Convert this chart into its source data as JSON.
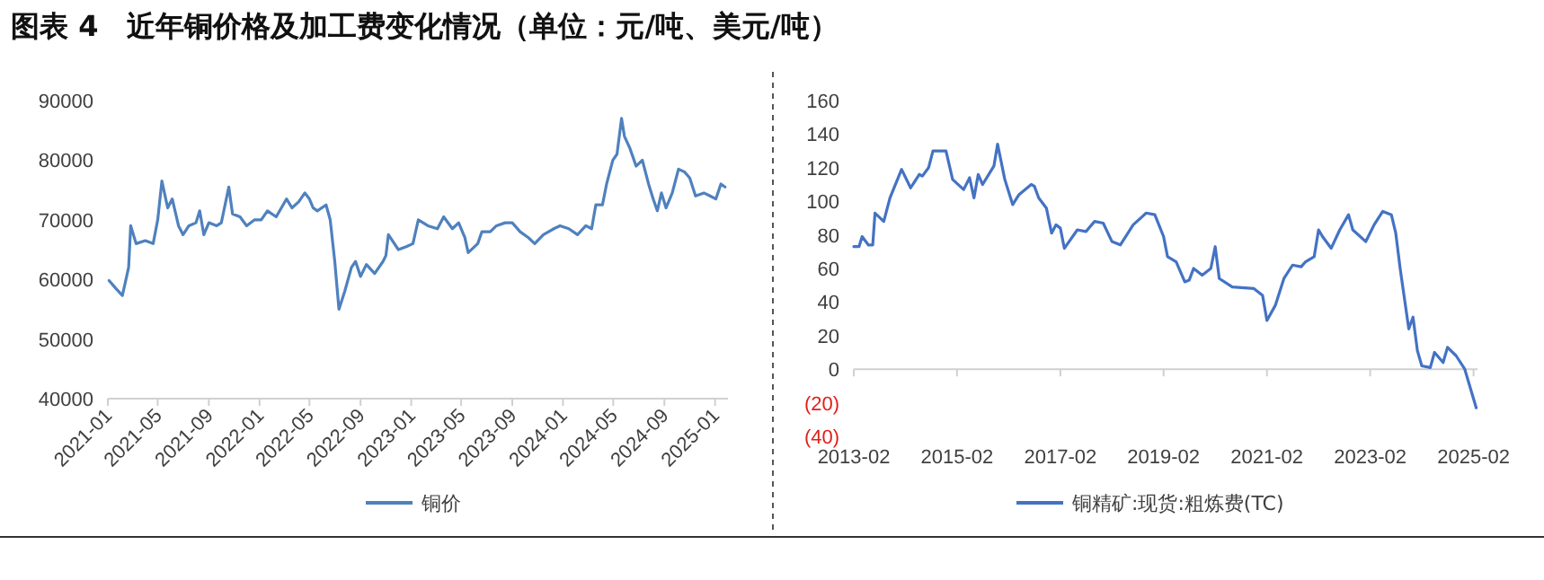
{
  "chart_data": [
    {
      "type": "line",
      "title": "图表 4　近年铜价格及加工费变化情况（单位：元/吨、美元/吨）",
      "legend": "bottom",
      "x": [
        "2021-01-04",
        "2021-01-20",
        "2021-02-05",
        "2021-02-20",
        "2021-02-25",
        "2021-03-10",
        "2021-04-01",
        "2021-04-20",
        "2021-05-01",
        "2021-05-11",
        "2021-05-25",
        "2021-06-05",
        "2021-06-20",
        "2021-07-01",
        "2021-07-15",
        "2021-08-01",
        "2021-08-10",
        "2021-08-20",
        "2021-09-01",
        "2021-09-20",
        "2021-10-01",
        "2021-10-19",
        "2021-10-28",
        "2021-11-15",
        "2021-12-01",
        "2021-12-20",
        "2022-01-05",
        "2022-01-20",
        "2022-02-10",
        "2022-03-07",
        "2022-03-20",
        "2022-04-05",
        "2022-04-20",
        "2022-05-01",
        "2022-05-10",
        "2022-05-20",
        "2022-06-10",
        "2022-06-20",
        "2022-07-01",
        "2022-07-11",
        "2022-07-25",
        "2022-08-10",
        "2022-08-20",
        "2022-09-01",
        "2022-09-15",
        "2022-10-05",
        "2022-10-25",
        "2022-11-01",
        "2022-11-07",
        "2022-12-01",
        "2022-12-20",
        "2023-01-05",
        "2023-01-18",
        "2023-02-10",
        "2023-03-05",
        "2023-03-20",
        "2023-04-10",
        "2023-04-25",
        "2023-05-10",
        "2023-05-18",
        "2023-06-10",
        "2023-06-20",
        "2023-07-10",
        "2023-07-25",
        "2023-08-15",
        "2023-09-01",
        "2023-09-20",
        "2023-10-10",
        "2023-10-25",
        "2023-11-15",
        "2023-12-10",
        "2023-12-25",
        "2024-01-15",
        "2024-02-05",
        "2024-02-25",
        "2024-03-10",
        "2024-03-20",
        "2024-04-05",
        "2024-04-15",
        "2024-04-30",
        "2024-05-10",
        "2024-05-21",
        "2024-05-28",
        "2024-06-10",
        "2024-06-25",
        "2024-07-10",
        "2024-07-25",
        "2024-08-05",
        "2024-08-15",
        "2024-08-25",
        "2024-09-05",
        "2024-09-20",
        "2024-10-05",
        "2024-10-20",
        "2024-11-01",
        "2024-11-15",
        "2024-12-05",
        "2024-12-20",
        "2025-01-03",
        "2025-01-15",
        "2025-01-25"
      ],
      "series": [
        {
          "name": "铜价",
          "color": "#4f81bd",
          "values": [
            59800,
            58500,
            57300,
            62000,
            69000,
            66000,
            66500,
            66000,
            70000,
            76500,
            72000,
            73500,
            69000,
            67500,
            69000,
            69500,
            71500,
            67500,
            69500,
            69000,
            69500,
            75500,
            71000,
            70500,
            69000,
            70000,
            70000,
            71500,
            70500,
            73500,
            72000,
            73000,
            74500,
            73500,
            72000,
            71500,
            72500,
            70000,
            63000,
            55000,
            58000,
            62000,
            63000,
            60500,
            62500,
            61000,
            63000,
            64000,
            67500,
            65000,
            65500,
            66000,
            70000,
            69000,
            68500,
            70500,
            68500,
            69500,
            67000,
            64500,
            66000,
            68000,
            68000,
            69000,
            69500,
            69500,
            68000,
            67000,
            66000,
            67500,
            68500,
            69000,
            68500,
            67500,
            69000,
            68500,
            72500,
            72500,
            76000,
            80000,
            81000,
            87000,
            84000,
            82000,
            79000,
            80000,
            76000,
            73500,
            71500,
            74500,
            72000,
            74500,
            78500,
            78000,
            77000,
            74000,
            74500,
            74000,
            73500,
            76000,
            75500
          ]
        }
      ],
      "xlim": [
        "2021-01-01",
        "2025-02-01"
      ],
      "ylim": [
        40000,
        90000
      ],
      "xticks": [
        "2021-01",
        "2021-05",
        "2021-09",
        "2022-01",
        "2022-05",
        "2022-09",
        "2023-01",
        "2023-05",
        "2023-09",
        "2024-01",
        "2024-05",
        "2024-09",
        "2025-01"
      ],
      "yticks": [
        40000,
        50000,
        60000,
        70000,
        80000,
        90000
      ]
    },
    {
      "type": "line",
      "legend": "bottom",
      "x": [
        "2013-02-01",
        "2013-03-10",
        "2013-04-01",
        "2013-05-15",
        "2013-06-15",
        "2013-07-01",
        "2013-09-01",
        "2013-10-15",
        "2014-01-05",
        "2014-03-10",
        "2014-05-10",
        "2014-06-01",
        "2014-07-15",
        "2014-08-15",
        "2014-11-15",
        "2015-01-01",
        "2015-03-20",
        "2015-05-01",
        "2015-06-01",
        "2015-07-01",
        "2015-08-01",
        "2015-10-20",
        "2015-11-15",
        "2016-01-05",
        "2016-03-01",
        "2016-04-15",
        "2016-07-10",
        "2016-08-01",
        "2016-09-01",
        "2016-10-25",
        "2016-12-01",
        "2017-01-01",
        "2017-02-01",
        "2017-03-01",
        "2017-06-01",
        "2017-08-01",
        "2017-10-01",
        "2017-12-01",
        "2018-02-01",
        "2018-04-01",
        "2018-07-01",
        "2018-10-01",
        "2018-12-01",
        "2019-02-01",
        "2019-03-01",
        "2019-05-01",
        "2019-07-01",
        "2019-08-01",
        "2019-09-01",
        "2019-11-01",
        "2020-01-01",
        "2020-02-01",
        "2020-03-01",
        "2020-06-01",
        "2020-11-01",
        "2021-01-01",
        "2021-02-01",
        "2021-04-01",
        "2021-06-01",
        "2021-08-01",
        "2021-10-01",
        "2021-11-01",
        "2022-01-01",
        "2022-02-01",
        "2022-03-01",
        "2022-05-01",
        "2022-07-01",
        "2022-09-01",
        "2022-10-01",
        "2023-01-01",
        "2023-03-01",
        "2023-05-01",
        "2023-07-01",
        "2023-08-01",
        "2023-09-01",
        "2023-11-01",
        "2023-12-01",
        "2024-01-01",
        "2024-02-01",
        "2024-04-01",
        "2024-05-01",
        "2024-07-01",
        "2024-08-01",
        "2024-10-01",
        "2024-12-01",
        "2025-02-20"
      ],
      "series": [
        {
          "name": "铜精矿:现货:粗炼费(TC)",
          "color": "#4472c4",
          "values": [
            73,
            73,
            79,
            74,
            74,
            93,
            88,
            102,
            119,
            108,
            116,
            115,
            120,
            130,
            130,
            113,
            107,
            114,
            102,
            116,
            110,
            121,
            134,
            113,
            98,
            104,
            110,
            109,
            102,
            96,
            81,
            86,
            84,
            72,
            83,
            82,
            88,
            87,
            76,
            74,
            86,
            93,
            92,
            79,
            67,
            64,
            52,
            53,
            60,
            56,
            60,
            73,
            54,
            49,
            48,
            44,
            29,
            38,
            54,
            62,
            61,
            64,
            67,
            83,
            79,
            72,
            83,
            92,
            83,
            76,
            86,
            94,
            92,
            81,
            60,
            24,
            31,
            11,
            2,
            1,
            10,
            4,
            13,
            8,
            0,
            -23
          ]
        }
      ],
      "xlim": [
        "2013-02-01",
        "2025-03-01"
      ],
      "ylim": [
        -40,
        160
      ],
      "xticks": [
        "2013-02",
        "2015-02",
        "2017-02",
        "2019-02",
        "2021-02",
        "2023-02",
        "2025-02"
      ],
      "yticks": [
        {
          "value": -40,
          "label": "(40)"
        },
        {
          "value": -20,
          "label": "(20)"
        },
        0,
        20,
        40,
        60,
        80,
        100,
        120,
        140,
        160
      ]
    }
  ]
}
